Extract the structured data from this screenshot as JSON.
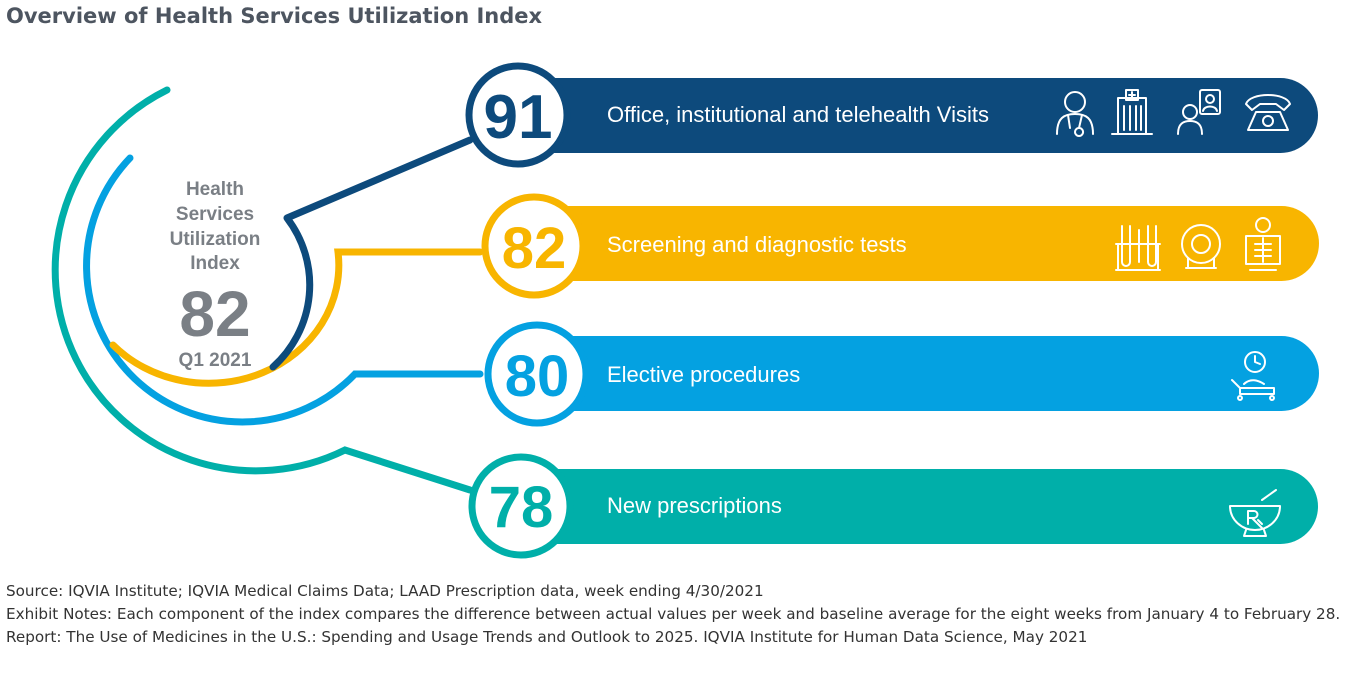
{
  "title": "Overview of Health Services Utilization Index",
  "center": {
    "label_lines": [
      "Health",
      "Services",
      "Utilization",
      "Index"
    ],
    "value": "82",
    "period": "Q1 2021"
  },
  "components": [
    {
      "value": "91",
      "label": "Office, institutional and telehealth Visits",
      "color": "#0d4a7c",
      "icons": [
        "doctor-icon",
        "hospital-building-icon",
        "telehealth-tablet-icon",
        "telephone-icon"
      ]
    },
    {
      "value": "82",
      "label": "Screening and diagnostic tests",
      "color": "#f8b500",
      "icons": [
        "test-tubes-icon",
        "mri-scanner-icon",
        "xray-icon"
      ]
    },
    {
      "value": "80",
      "label": "Elective procedures",
      "color": "#04a1e1",
      "icons": [
        "patient-bed-clock-icon"
      ]
    },
    {
      "value": "78",
      "label": "New prescriptions",
      "color": "#00afa9",
      "icons": [
        "mortar-pestle-rx-icon"
      ]
    }
  ],
  "footer": {
    "source": "Source: IQVIA Institute; IQVIA Medical Claims Data; LAAD Prescription data, week ending 4/30/2021",
    "notes": "Exhibit Notes: Each component of the index compares the difference between actual values per week and baseline average for the eight weeks from January 4 to February 28.",
    "report": "Report: The Use of Medicines in the U.S.: Spending and Usage Trends and Outlook to 2025. IQVIA Institute for Human Data Science, May 2021"
  }
}
